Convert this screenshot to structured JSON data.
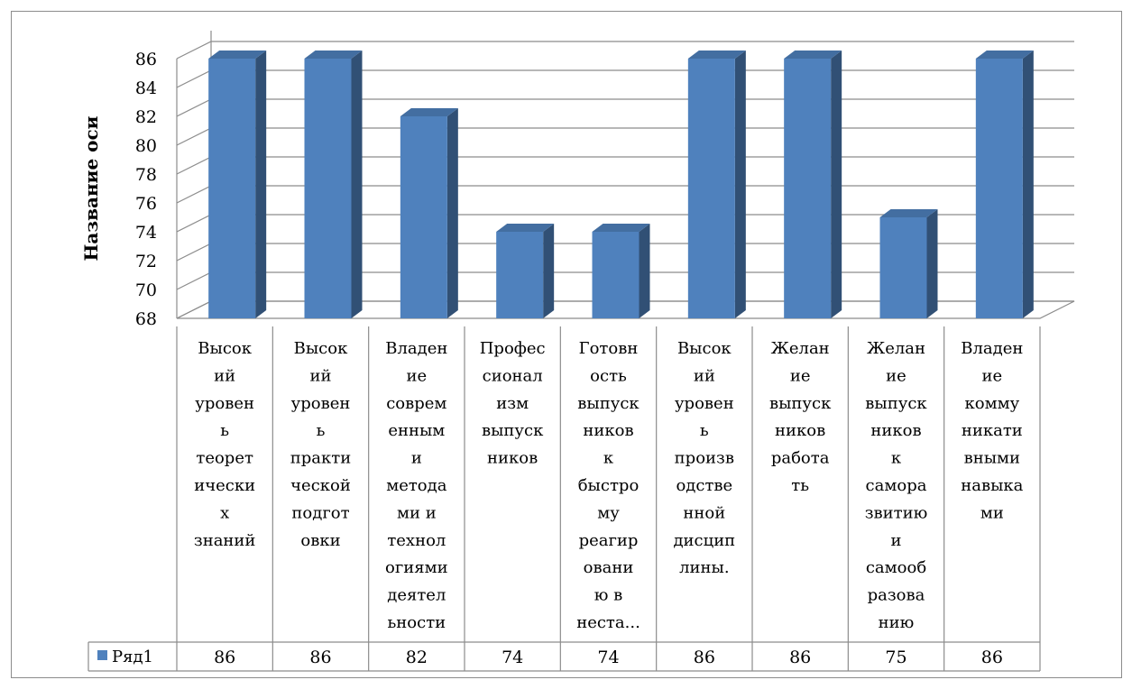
{
  "chart_data": {
    "type": "bar",
    "ylabel": "Название оси",
    "ylim": [
      68,
      86
    ],
    "yticks": [
      68,
      70,
      72,
      74,
      76,
      78,
      80,
      82,
      84,
      86
    ],
    "grid": true,
    "legend_position": "left of data table",
    "categories": [
      [
        "Высок",
        "ий",
        "уровен",
        "ь",
        "теорет",
        "ически",
        "х",
        "знаний"
      ],
      [
        "Высок",
        "ий",
        "уровен",
        "ь",
        "практи",
        "ческой",
        "подгот",
        "овки"
      ],
      [
        "Владен",
        "ие",
        "соврем",
        "енным",
        "и",
        "метода",
        "ми и",
        "технол",
        "огиями",
        "деятел",
        "ьности"
      ],
      [
        "Профес",
        "сионал",
        "изм",
        "выпуск",
        "ников"
      ],
      [
        "Готовн",
        "ость",
        "выпуск",
        "ников",
        "к",
        "быстро",
        "му",
        "реагир",
        "овани",
        "ю в",
        "неста..."
      ],
      [
        "Высок",
        "ий",
        "уровен",
        "ь",
        "произв",
        "одстве",
        "нной",
        "дисцип",
        "лины."
      ],
      [
        "Желан",
        "ие",
        "выпуск",
        "ников",
        "работа",
        "ть"
      ],
      [
        "Желан",
        "ие",
        "выпуск",
        "ников",
        "к",
        "самора",
        "звитию",
        "и",
        "самооб",
        "разова",
        "нию"
      ],
      [
        "Владен",
        "ие",
        "комму",
        "никати",
        "вными",
        "навыка",
        "ми"
      ]
    ],
    "series": [
      {
        "name": "Ряд1",
        "values": [
          86,
          86,
          82,
          74,
          74,
          86,
          86,
          75,
          86
        ],
        "color": "#4f81bd"
      }
    ]
  }
}
